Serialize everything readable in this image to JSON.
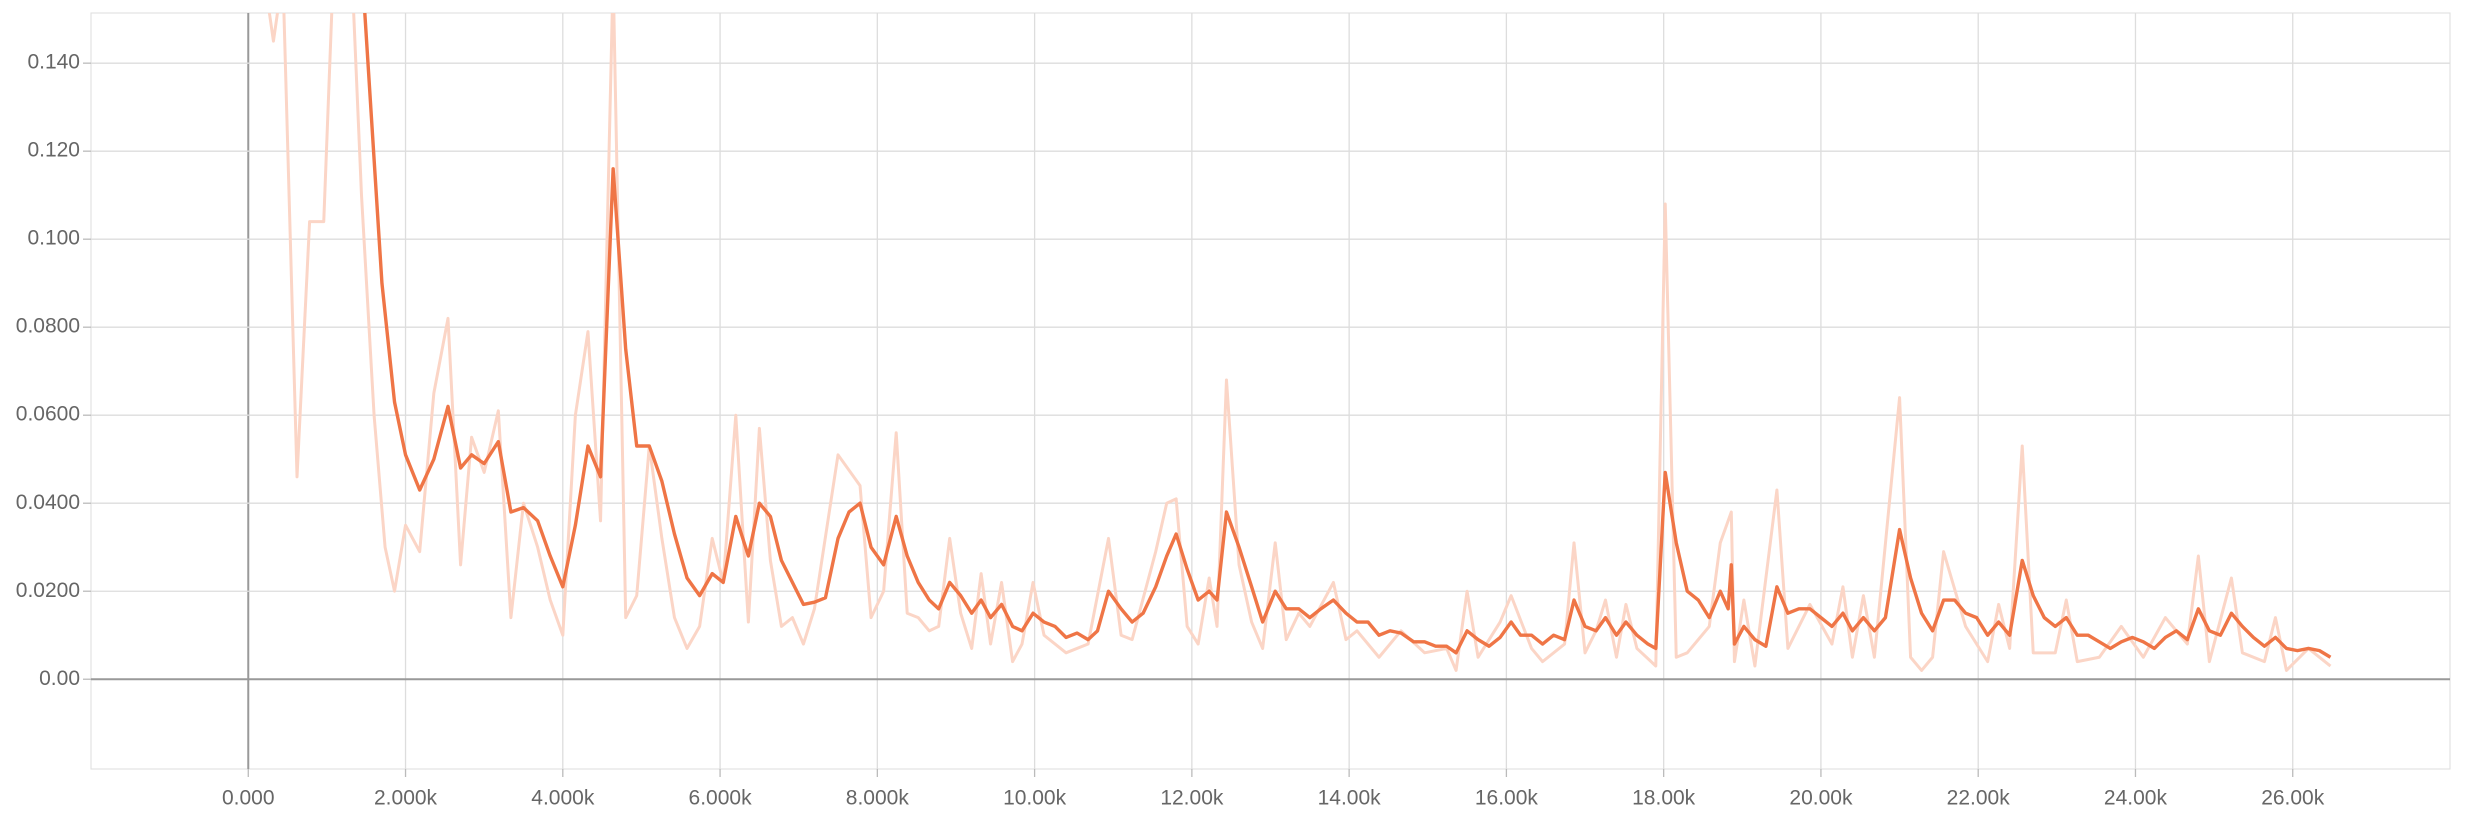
{
  "chart_data": {
    "type": "line",
    "xlim": [
      -2000,
      28000
    ],
    "ylim": [
      -0.0204,
      0.1514
    ],
    "grid": true,
    "xticks": [
      {
        "value": 0,
        "label": "0.000"
      },
      {
        "value": 2000,
        "label": "2.000k"
      },
      {
        "value": 4000,
        "label": "4.000k"
      },
      {
        "value": 6000,
        "label": "6.000k"
      },
      {
        "value": 8000,
        "label": "8.000k"
      },
      {
        "value": 10000,
        "label": "10.00k"
      },
      {
        "value": 12000,
        "label": "12.00k"
      },
      {
        "value": 14000,
        "label": "14.00k"
      },
      {
        "value": 16000,
        "label": "16.00k"
      },
      {
        "value": 18000,
        "label": "18.00k"
      },
      {
        "value": 20000,
        "label": "20.00k"
      },
      {
        "value": 22000,
        "label": "22.00k"
      },
      {
        "value": 24000,
        "label": "24.00k"
      },
      {
        "value": 26000,
        "label": "26.00k"
      }
    ],
    "yticks": [
      {
        "value": 0,
        "label": "0.00"
      },
      {
        "value": 0.02,
        "label": "0.0200"
      },
      {
        "value": 0.04,
        "label": "0.0400"
      },
      {
        "value": 0.06,
        "label": "0.0600"
      },
      {
        "value": 0.08,
        "label": "0.0800"
      },
      {
        "value": 0.1,
        "label": "0.100"
      },
      {
        "value": 0.12,
        "label": "0.120"
      },
      {
        "value": 0.14,
        "label": "0.140"
      }
    ],
    "series": [
      {
        "color": "#fbd5c6",
        "x": [
          240,
          320,
          440,
          620,
          780,
          960,
          1080,
          1320,
          1440,
          1600,
          1740,
          1860,
          2000,
          2180,
          2360,
          2540,
          2700,
          2840,
          3000,
          3180,
          3340,
          3500,
          3680,
          3840,
          4000,
          4160,
          4320,
          4480,
          4640,
          4800,
          4940,
          5100,
          5260,
          5420,
          5580,
          5740,
          5900,
          6040,
          6200,
          6360,
          6500,
          6640,
          6780,
          6920,
          7060,
          7200,
          7500,
          7780,
          7920,
          8080,
          8240,
          8380,
          8520,
          8660,
          8780,
          8920,
          9060,
          9200,
          9320,
          9440,
          9580,
          9720,
          9840,
          9980,
          10120,
          10400,
          10680,
          10940,
          11100,
          11240,
          11540,
          11680,
          11800,
          11940,
          12080,
          12220,
          12320,
          12440,
          12600,
          12760,
          12900,
          13060,
          13200,
          13360,
          13500,
          13800,
          13960,
          14100,
          14380,
          14660,
          14960,
          15240,
          15360,
          15500,
          15640,
          15920,
          16060,
          16320,
          16460,
          16740,
          16860,
          17000,
          17140,
          17260,
          17400,
          17520,
          17660,
          17900,
          18020,
          18160,
          18300,
          18580,
          18720,
          18860,
          18900,
          19020,
          19160,
          19440,
          19580,
          19860,
          20140,
          20280,
          20400,
          20540,
          20680,
          21000,
          21140,
          21280,
          21420,
          21560,
          21840,
          22120,
          22260,
          22400,
          22560,
          22700,
          22980,
          23120,
          23260,
          23540,
          23820,
          24100,
          24380,
          24660,
          24800,
          24940,
          25220,
          25360,
          25640,
          25780,
          25920,
          26200,
          26480
        ],
        "values": [
          0.155,
          0.145,
          0.16,
          0.046,
          0.104,
          0.104,
          0.16,
          0.16,
          0.11,
          0.06,
          0.03,
          0.02,
          0.035,
          0.029,
          0.065,
          0.082,
          0.026,
          0.055,
          0.047,
          0.061,
          0.014,
          0.04,
          0.03,
          0.018,
          0.01,
          0.06,
          0.079,
          0.036,
          0.16,
          0.014,
          0.019,
          0.053,
          0.032,
          0.014,
          0.007,
          0.012,
          0.032,
          0.022,
          0.06,
          0.013,
          0.057,
          0.027,
          0.012,
          0.014,
          0.008,
          0.016,
          0.051,
          0.044,
          0.014,
          0.02,
          0.056,
          0.015,
          0.014,
          0.011,
          0.012,
          0.032,
          0.015,
          0.007,
          0.024,
          0.008,
          0.022,
          0.004,
          0.008,
          0.022,
          0.01,
          0.006,
          0.008,
          0.032,
          0.01,
          0.009,
          0.029,
          0.04,
          0.041,
          0.012,
          0.008,
          0.023,
          0.012,
          0.068,
          0.026,
          0.013,
          0.007,
          0.031,
          0.009,
          0.015,
          0.012,
          0.022,
          0.009,
          0.011,
          0.005,
          0.011,
          0.006,
          0.007,
          0.002,
          0.02,
          0.005,
          0.013,
          0.019,
          0.007,
          0.004,
          0.008,
          0.031,
          0.006,
          0.011,
          0.018,
          0.005,
          0.017,
          0.007,
          0.003,
          0.108,
          0.005,
          0.006,
          0.012,
          0.031,
          0.038,
          0.004,
          0.018,
          0.003,
          0.043,
          0.007,
          0.017,
          0.008,
          0.021,
          0.005,
          0.019,
          0.005,
          0.064,
          0.005,
          0.002,
          0.005,
          0.029,
          0.012,
          0.004,
          0.017,
          0.007,
          0.053,
          0.006,
          0.006,
          0.018,
          0.004,
          0.005,
          0.012,
          0.005,
          0.014,
          0.008,
          0.028,
          0.004,
          0.023,
          0.006,
          0.004,
          0.014,
          0.002,
          0.007,
          0.003
        ]
      },
      {
        "color": "#ef7546",
        "x": [
          1480,
          1700,
          1860,
          2000,
          2180,
          2360,
          2540,
          2700,
          2840,
          3000,
          3180,
          3340,
          3500,
          3680,
          3840,
          4000,
          4160,
          4320,
          4480,
          4640,
          4800,
          4940,
          5100,
          5260,
          5420,
          5580,
          5740,
          5900,
          6040,
          6200,
          6360,
          6500,
          6640,
          6780,
          6920,
          7060,
          7200,
          7340,
          7500,
          7640,
          7780,
          7920,
          8080,
          8240,
          8380,
          8520,
          8660,
          8780,
          8920,
          9060,
          9200,
          9320,
          9440,
          9580,
          9720,
          9840,
          9980,
          10120,
          10260,
          10400,
          10540,
          10680,
          10800,
          10940,
          11100,
          11240,
          11380,
          11540,
          11680,
          11800,
          11940,
          12080,
          12220,
          12320,
          12440,
          12600,
          12760,
          12900,
          13060,
          13200,
          13360,
          13500,
          13640,
          13800,
          13960,
          14100,
          14240,
          14380,
          14520,
          14660,
          14820,
          14960,
          15100,
          15240,
          15360,
          15500,
          15640,
          15780,
          15920,
          16060,
          16180,
          16320,
          16460,
          16600,
          16740,
          16860,
          17000,
          17140,
          17260,
          17400,
          17520,
          17660,
          17800,
          17900,
          18020,
          18160,
          18300,
          18440,
          18580,
          18720,
          18820,
          18860,
          18900,
          19020,
          19160,
          19300,
          19440,
          19580,
          19720,
          19860,
          20000,
          20140,
          20280,
          20400,
          20540,
          20680,
          20820,
          21000,
          21140,
          21280,
          21420,
          21560,
          21700,
          21840,
          21980,
          22120,
          22260,
          22400,
          22560,
          22700,
          22840,
          22980,
          23120,
          23260,
          23400,
          23540,
          23680,
          23820,
          23960,
          24100,
          24240,
          24380,
          24520,
          24660,
          24800,
          24940,
          25080,
          25220,
          25360,
          25500,
          25640,
          25780,
          25920,
          26060,
          26200,
          26340,
          26480
        ],
        "values": [
          0.152,
          0.09,
          0.063,
          0.051,
          0.043,
          0.05,
          0.062,
          0.048,
          0.051,
          0.049,
          0.054,
          0.038,
          0.039,
          0.036,
          0.028,
          0.021,
          0.035,
          0.053,
          0.046,
          0.116,
          0.075,
          0.053,
          0.053,
          0.045,
          0.033,
          0.023,
          0.019,
          0.024,
          0.022,
          0.037,
          0.028,
          0.04,
          0.037,
          0.027,
          0.022,
          0.017,
          0.0175,
          0.0185,
          0.032,
          0.038,
          0.04,
          0.03,
          0.026,
          0.037,
          0.028,
          0.022,
          0.018,
          0.016,
          0.022,
          0.019,
          0.015,
          0.018,
          0.014,
          0.017,
          0.012,
          0.011,
          0.015,
          0.013,
          0.012,
          0.0095,
          0.0105,
          0.009,
          0.011,
          0.02,
          0.016,
          0.013,
          0.015,
          0.021,
          0.028,
          0.033,
          0.025,
          0.018,
          0.02,
          0.018,
          0.038,
          0.03,
          0.021,
          0.013,
          0.02,
          0.016,
          0.016,
          0.014,
          0.016,
          0.018,
          0.015,
          0.013,
          0.013,
          0.01,
          0.011,
          0.0105,
          0.0085,
          0.0085,
          0.0075,
          0.0075,
          0.006,
          0.011,
          0.009,
          0.0075,
          0.0095,
          0.013,
          0.01,
          0.01,
          0.008,
          0.01,
          0.009,
          0.018,
          0.012,
          0.011,
          0.014,
          0.01,
          0.013,
          0.01,
          0.008,
          0.007,
          0.047,
          0.031,
          0.02,
          0.018,
          0.014,
          0.02,
          0.016,
          0.026,
          0.008,
          0.012,
          0.009,
          0.0075,
          0.021,
          0.015,
          0.016,
          0.016,
          0.014,
          0.012,
          0.015,
          0.011,
          0.014,
          0.011,
          0.014,
          0.034,
          0.023,
          0.015,
          0.011,
          0.018,
          0.018,
          0.015,
          0.014,
          0.01,
          0.013,
          0.01,
          0.027,
          0.019,
          0.014,
          0.012,
          0.014,
          0.01,
          0.01,
          0.0085,
          0.007,
          0.0085,
          0.0095,
          0.0085,
          0.007,
          0.0095,
          0.011,
          0.009,
          0.016,
          0.011,
          0.01,
          0.015,
          0.012,
          0.0095,
          0.0075,
          0.0095,
          0.007,
          0.0065,
          0.007,
          0.0065,
          0.005
        ]
      }
    ]
  }
}
